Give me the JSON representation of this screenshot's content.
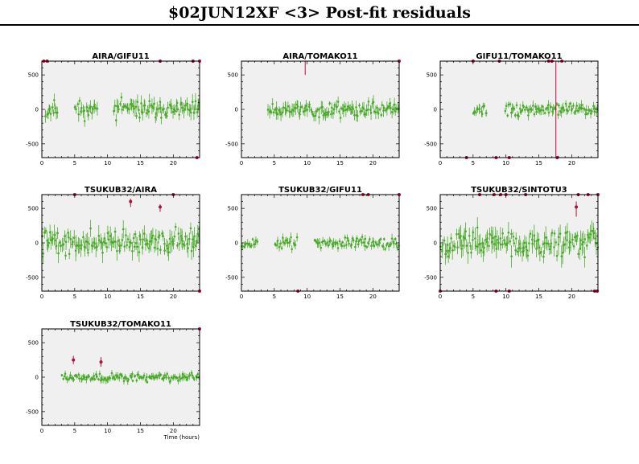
{
  "title": "$02JUN12XF <3> Post-fit residuals",
  "colors": {
    "data": "#4aaa2a",
    "outlier": "#b0103a",
    "panel_bg": "#f0f0f0",
    "axis": "#000000"
  },
  "chart_data": {
    "type": "scatter",
    "xlim": [
      0,
      24
    ],
    "ylim": [
      -700,
      700
    ],
    "x_ticks": [
      0,
      5,
      10,
      15,
      20
    ],
    "y_ticks": [
      -500,
      0,
      500
    ],
    "xlabel": "Time (hours)",
    "ylabel": "",
    "grid": false,
    "panels": [
      {
        "title": "AIRA/GIFU11",
        "row": 0,
        "col": 0,
        "seed": 11,
        "start": 0.5,
        "end": 24,
        "spread": 90,
        "gaps": [
          [
            2.5,
            5
          ],
          [
            8.5,
            10.9
          ]
        ],
        "outliers": [
          [
            0.3,
            700
          ],
          [
            0.8,
            700
          ],
          [
            18.0,
            700
          ],
          [
            23.0,
            700
          ],
          [
            24.0,
            700
          ],
          [
            23.6,
            -700
          ]
        ],
        "spikes": []
      },
      {
        "title": "AIRA/TOMAKO11",
        "row": 0,
        "col": 1,
        "seed": 23,
        "start": 4,
        "end": 24,
        "spread": 80,
        "gaps": [],
        "outliers": [
          [
            24.0,
            700
          ]
        ],
        "spikes": [
          [
            9.7,
            700,
            500
          ]
        ]
      },
      {
        "title": "GIFU11/TOMAKO11",
        "row": 0,
        "col": 2,
        "seed": 37,
        "start": 5,
        "end": 24,
        "spread": 60,
        "gaps": [
          [
            7.2,
            9.8
          ]
        ],
        "outliers": [
          [
            4.0,
            -700
          ],
          [
            8.5,
            -700
          ],
          [
            10.5,
            -700
          ],
          [
            5.0,
            700
          ],
          [
            9.0,
            700
          ],
          [
            16.5,
            700
          ],
          [
            17.0,
            700
          ],
          [
            18.5,
            700
          ],
          [
            17.8,
            -700
          ]
        ],
        "spikes": [
          [
            17.6,
            700,
            -700
          ]
        ]
      },
      {
        "title": "TSUKUB32/AIRA",
        "row": 1,
        "col": 0,
        "seed": 41,
        "start": 0,
        "end": 24,
        "spread": 120,
        "gaps": [],
        "outliers": [
          [
            5.0,
            700
          ],
          [
            20.0,
            700
          ],
          [
            24.0,
            -700
          ],
          [
            13.5,
            600
          ],
          [
            18.0,
            520
          ]
        ],
        "spikes": [
          [
            13.5,
            640,
            520
          ],
          [
            18.0,
            560,
            450
          ]
        ]
      },
      {
        "title": "TSUKUB32/GIFU11",
        "row": 1,
        "col": 1,
        "seed": 53,
        "start": 0,
        "end": 24,
        "spread": 55,
        "gaps": [
          [
            2.5,
            5
          ],
          [
            8.5,
            10.9
          ]
        ],
        "outliers": [
          [
            18.5,
            700
          ],
          [
            19.3,
            700
          ],
          [
            24.0,
            700
          ],
          [
            8.6,
            -700
          ]
        ],
        "spikes": []
      },
      {
        "title": "TSUKUB32/SINTOTU3",
        "row": 1,
        "col": 2,
        "seed": 67,
        "start": 0,
        "end": 24,
        "spread": 130,
        "gaps": [],
        "outliers": [
          [
            6.0,
            700
          ],
          [
            8.2,
            700
          ],
          [
            9.2,
            700
          ],
          [
            10.0,
            700
          ],
          [
            13.0,
            700
          ],
          [
            21.0,
            700
          ],
          [
            22.5,
            700
          ],
          [
            24.0,
            700
          ],
          [
            0.0,
            -700
          ],
          [
            8.5,
            -700
          ],
          [
            10.5,
            -700
          ],
          [
            23.5,
            -700
          ],
          [
            23.9,
            -700
          ],
          [
            20.7,
            520
          ]
        ],
        "spikes": [
          [
            20.7,
            600,
            380
          ]
        ]
      },
      {
        "title": "TSUKUB32/TOMAKO11",
        "row": 2,
        "col": 0,
        "seed": 79,
        "start": 3,
        "end": 24,
        "spread": 45,
        "gaps": [],
        "outliers": [
          [
            4.8,
            250
          ],
          [
            9.0,
            220
          ],
          [
            24.0,
            700
          ]
        ],
        "spikes": [
          [
            4.8,
            310,
            190
          ],
          [
            9.0,
            290,
            150
          ]
        ]
      }
    ]
  }
}
